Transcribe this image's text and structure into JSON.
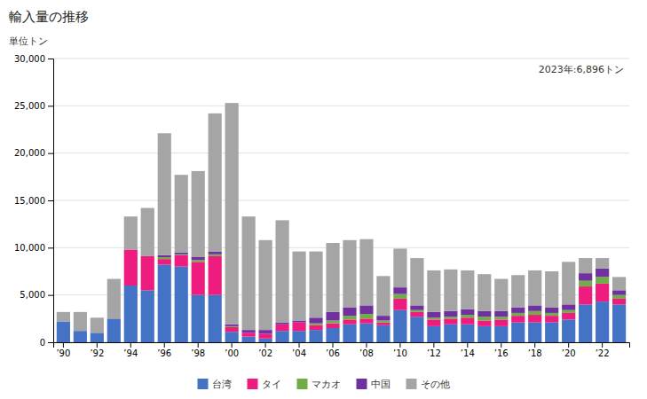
{
  "chart_data": {
    "type": "bar",
    "stacked": true,
    "title": "輸入量の推移",
    "y_label": "単位トン",
    "annotation": "2023年:6,896トン",
    "categories": [
      "’90",
      null,
      "’92",
      null,
      "’94",
      null,
      "’96",
      null,
      "’98",
      null,
      "’00",
      null,
      "’02",
      null,
      "’04",
      null,
      "’06",
      null,
      "’08",
      null,
      "’10",
      null,
      "’12",
      null,
      "’14",
      null,
      "’16",
      null,
      "’18",
      null,
      "’20",
      null,
      "’22",
      null
    ],
    "series": [
      {
        "name": "台湾",
        "color": "#4472C4",
        "values": [
          2200,
          1200,
          1000,
          2500,
          6000,
          5500,
          8200,
          8000,
          5000,
          5000,
          1100,
          600,
          400,
          1200,
          1200,
          1300,
          1500,
          1900,
          2000,
          1800,
          3400,
          2700,
          1700,
          1900,
          1900,
          1700,
          1700,
          2100,
          2100,
          2100,
          2400,
          4000,
          4300,
          4000
        ]
      },
      {
        "name": "タイ",
        "color": "#ED1C7E",
        "values": [
          0,
          0,
          0,
          0,
          3800,
          3600,
          600,
          1200,
          3500,
          4100,
          500,
          400,
          500,
          700,
          900,
          500,
          500,
          500,
          500,
          300,
          1200,
          500,
          700,
          600,
          700,
          600,
          700,
          700,
          800,
          700,
          700,
          1900,
          1900,
          600
        ]
      },
      {
        "name": "マカオ",
        "color": "#70AD47",
        "values": [
          0,
          0,
          0,
          0,
          0,
          0,
          200,
          100,
          200,
          200,
          100,
          0,
          0,
          0,
          0,
          200,
          300,
          400,
          500,
          200,
          500,
          200,
          200,
          200,
          300,
          400,
          300,
          300,
          400,
          300,
          300,
          600,
          700,
          400
        ]
      },
      {
        "name": "中国",
        "color": "#7030A0",
        "values": [
          0,
          0,
          0,
          0,
          0,
          0,
          200,
          200,
          300,
          300,
          200,
          300,
          400,
          200,
          200,
          600,
          900,
          900,
          900,
          500,
          700,
          500,
          600,
          600,
          600,
          600,
          600,
          600,
          600,
          600,
          600,
          800,
          900,
          500
        ]
      },
      {
        "name": "その他",
        "color": "#A5A5A5",
        "values": [
          1000,
          2000,
          1600,
          4200,
          3500,
          5100,
          12900,
          8200,
          9100,
          14600,
          23400,
          12000,
          9500,
          10800,
          7300,
          7000,
          7300,
          7100,
          7000,
          4200,
          4100,
          5000,
          4400,
          4400,
          4100,
          3900,
          3400,
          3400,
          3700,
          3800,
          4500,
          1600,
          1100,
          1400
        ]
      }
    ],
    "ylim": [
      0,
      30000
    ],
    "yticks": [
      0,
      {
        "value": 5000,
        "label": "5,000"
      },
      {
        "value": 10000,
        "label": "10,000"
      },
      {
        "value": 15000,
        "label": "15,000"
      },
      {
        "value": 20000,
        "label": "20,000"
      },
      {
        "value": 25000,
        "label": "25,000"
      },
      {
        "value": 30000,
        "label": "30,000"
      }
    ],
    "grid": true,
    "legend": "bottom"
  }
}
